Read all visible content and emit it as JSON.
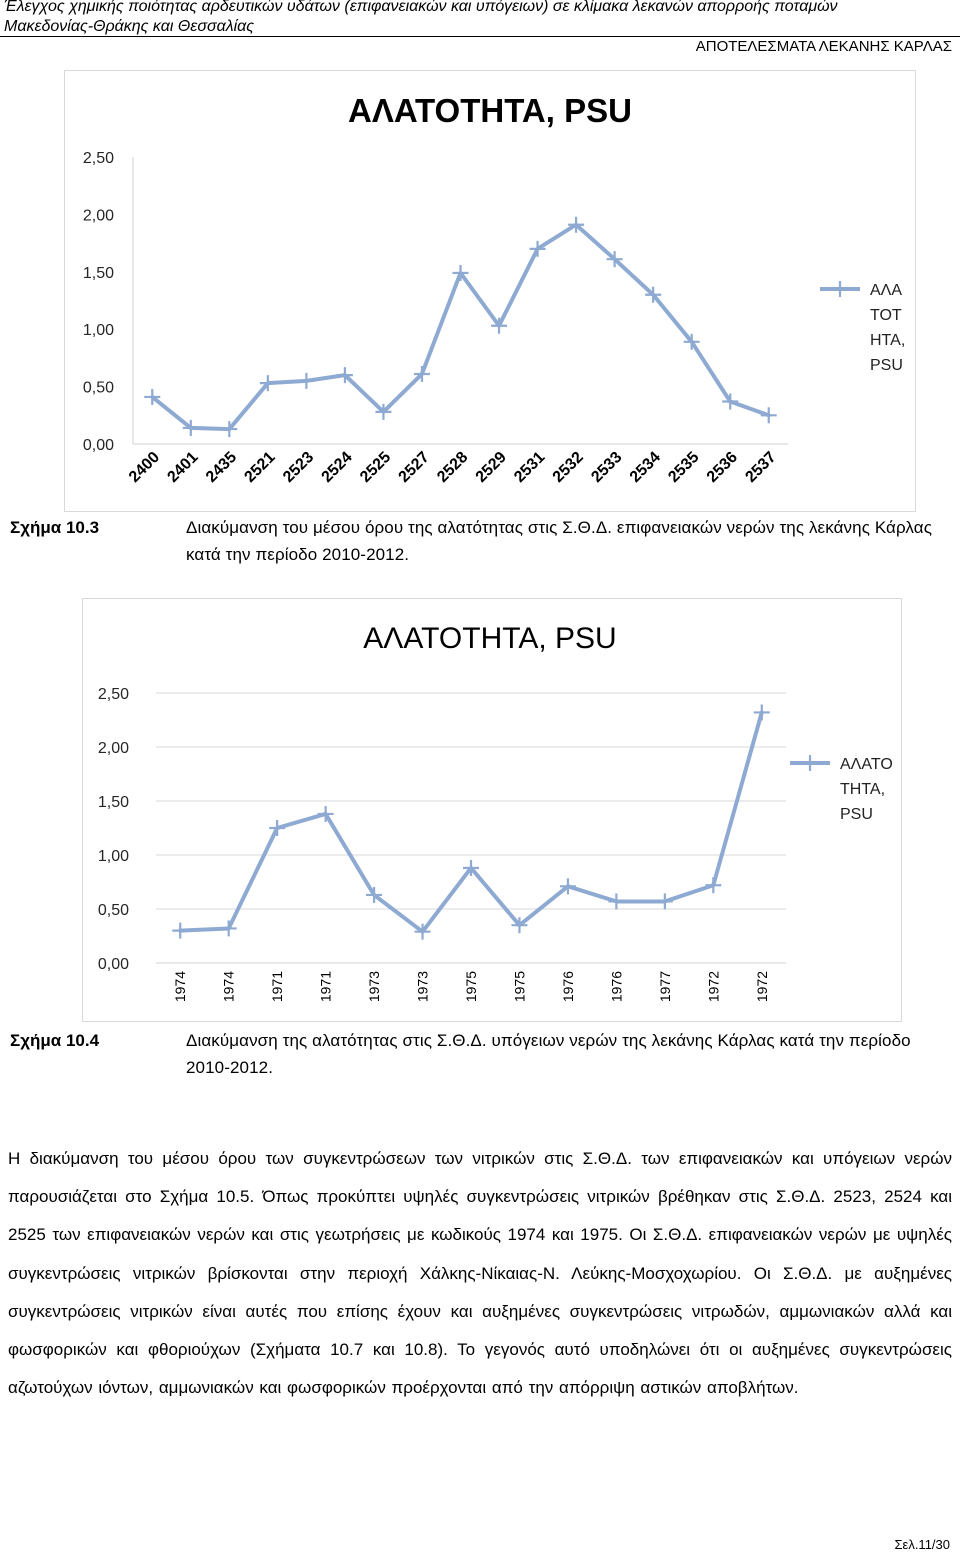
{
  "header": {
    "line1": "Έλεγχος χημικής ποιότητας αρδευτικών υδάτων (επιφανειακών και υπόγειων) σε κλίμακα λεκανών απορροής ποταμών",
    "line2": "Μακεδονίας-Θράκης και Θεσσαλίας",
    "section": "ΑΠΟΤΕΛΕΣΜΑΤΑ ΛΕΚΑΝΗΣ ΚΑΡΛΑΣ"
  },
  "figure1": {
    "caption_num": "Σχήμα 10.3",
    "caption_text": "Διακύμανση του μέσου όρου της αλατότητας στις Σ.Θ.Δ. επιφανειακών νερών της λεκάνης Κάρλας κατά την περίοδο 2010-2012."
  },
  "figure2": {
    "caption_num": "Σχήμα 10.4",
    "caption_text": "Διακύμανση της αλατότητας στις Σ.Θ.Δ. υπόγειων νερών της λεκάνης Κάρλας κατά την περίοδο 2010-2012."
  },
  "paragraph": "Η διακύμανση του μέσου όρου των συγκεντρώσεων των νιτρικών στις Σ.Θ.Δ. των επιφανειακών και υπόγειων νερών παρουσιάζεται στο Σχήμα 10.5. Όπως προκύπτει υψηλές συγκεντρώσεις νιτρικών βρέθηκαν στις Σ.Θ.Δ. 2523, 2524 και 2525 των επιφανειακών νερών και στις γεωτρήσεις με κωδικούς 1974 και 1975. Οι Σ.Θ.Δ. επιφανειακών νερών με υψηλές συγκεντρώσεις νιτρικών βρίσκονται στην περιοχή Χάλκης-Νίκαιας-Ν. Λεύκης-Μοσχοχωρίου. Οι Σ.Θ.Δ. με αυξημένες συγκεντρώσεις νιτρικών είναι αυτές που επίσης έχουν και αυξημένες συγκεντρώσεις νιτρωδών, αμμωνιακών αλλά και φωσφορικών και φθοριούχων (Σχήματα 10.7 και 10.8). Το γεγονός αυτό υποδηλώνει ότι οι αυξημένες συγκεντρώσεις αζωτούχων ιόντων, αμμωνιακών και φωσφορικών προέρχονται από την απόρριψη αστικών αποβλήτων.",
  "footer": "Σελ.11/30",
  "chart_data": [
    {
      "type": "line",
      "title": "ΑΛΑΤΟΤΗΤΑ, PSU",
      "categories": [
        "2400",
        "2401",
        "2435",
        "2521",
        "2523",
        "2524",
        "2525",
        "2527",
        "2528",
        "2529",
        "2531",
        "2532",
        "2533",
        "2534",
        "2535",
        "2536",
        "2537"
      ],
      "series": [
        {
          "name_lines": [
            "ΑΛΑ",
            "ΤΟΤ",
            "ΗΤΑ,",
            "PSU"
          ],
          "values": [
            0.41,
            0.14,
            0.13,
            0.53,
            0.55,
            0.6,
            0.28,
            0.61,
            1.49,
            1.03,
            1.7,
            1.91,
            1.61,
            1.3,
            0.89,
            0.37,
            0.25
          ]
        }
      ],
      "yticks": [
        "0,00",
        "0,50",
        "1,00",
        "1,50",
        "2,00",
        "2,50"
      ],
      "ylim": [
        0,
        2.5
      ],
      "grid": false,
      "legend": "right",
      "color": "#8eaad2"
    },
    {
      "type": "line",
      "title": "ΑΛΑΤΟΤΗΤΑ, PSU",
      "categories": [
        "1974",
        "1974",
        "1971",
        "1971",
        "1973",
        "1973",
        "1975",
        "1975",
        "1976",
        "1976",
        "1977",
        "1972",
        "1972"
      ],
      "series": [
        {
          "name_lines": [
            "ΑΛΑΤΟ",
            "ΤΗΤΑ,",
            "PSU"
          ],
          "values": [
            0.3,
            0.32,
            1.25,
            1.38,
            0.63,
            0.29,
            0.88,
            0.35,
            0.71,
            0.57,
            0.57,
            0.72,
            2.32
          ]
        }
      ],
      "yticks": [
        "0,00",
        "0,50",
        "1,00",
        "1,50",
        "2,00",
        "2,50"
      ],
      "ylim": [
        0,
        2.5
      ],
      "grid": true,
      "legend": "right",
      "color": "#8eaad2"
    }
  ]
}
